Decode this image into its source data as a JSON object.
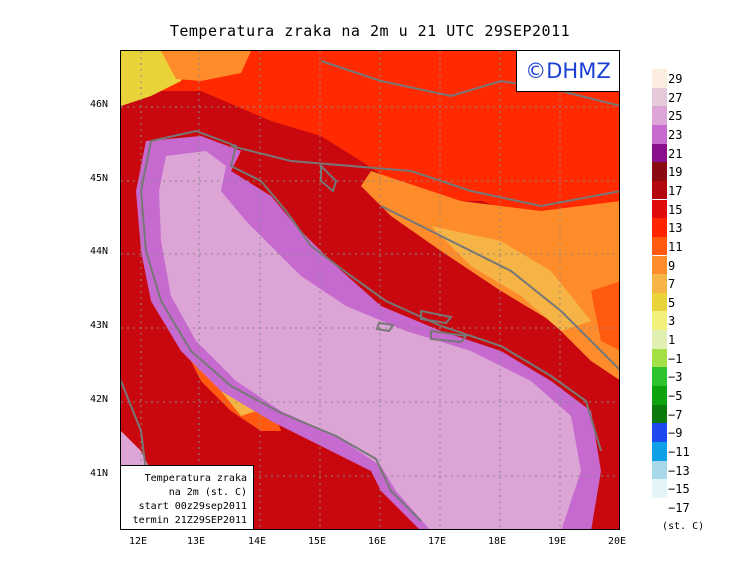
{
  "map": {
    "title": "Temperatura zraka na 2m u 21 UTC 29SEP2011",
    "logo": "©DHMZ",
    "info_box": {
      "line1": "Temperatura zraka",
      "line2": "na 2m (st. C)",
      "line3": "start 00z29sep2011",
      "line4": "termin 21Z29SEP2011"
    },
    "lat_labels": [
      "46N",
      "45N",
      "44N",
      "43N",
      "42N",
      "41N"
    ],
    "lon_labels": [
      "12E",
      "13E",
      "14E",
      "15E",
      "16E",
      "17E",
      "18E",
      "19E",
      "20E"
    ],
    "colorbar": {
      "unit": "(st. C)",
      "levels": [
        {
          "label": "29",
          "color": "#fbeee0"
        },
        {
          "label": "27",
          "color": "#e6c9d9"
        },
        {
          "label": "25",
          "color": "#dca5d6"
        },
        {
          "label": "23",
          "color": "#c66ad0"
        },
        {
          "label": "21",
          "color": "#8a0f8c"
        },
        {
          "label": "19",
          "color": "#8a0a12"
        },
        {
          "label": "17",
          "color": "#b3080e"
        },
        {
          "label": "15",
          "color": "#e00a0a"
        },
        {
          "label": "13",
          "color": "#ff2400"
        },
        {
          "label": "11",
          "color": "#ff5a10"
        },
        {
          "label": "9",
          "color": "#ff8c2a"
        },
        {
          "label": "7",
          "color": "#f5b445"
        },
        {
          "label": "5",
          "color": "#ead23a"
        },
        {
          "label": "3",
          "color": "#f0f07a"
        },
        {
          "label": "1",
          "color": "#e2efb3"
        },
        {
          "label": "−1",
          "color": "#a3e046"
        },
        {
          "label": "−3",
          "color": "#2ec22e"
        },
        {
          "label": "−5",
          "color": "#0ea20e"
        },
        {
          "label": "−7",
          "color": "#0a7a0a"
        },
        {
          "label": "−9",
          "color": "#1f49f0"
        },
        {
          "label": "−11",
          "color": "#10a0e8"
        },
        {
          "label": "−13",
          "color": "#a8d9ea"
        },
        {
          "label": "−15",
          "color": "#e4f5f7"
        },
        {
          "label": "−17",
          "color": "#ffffff"
        }
      ]
    }
  }
}
